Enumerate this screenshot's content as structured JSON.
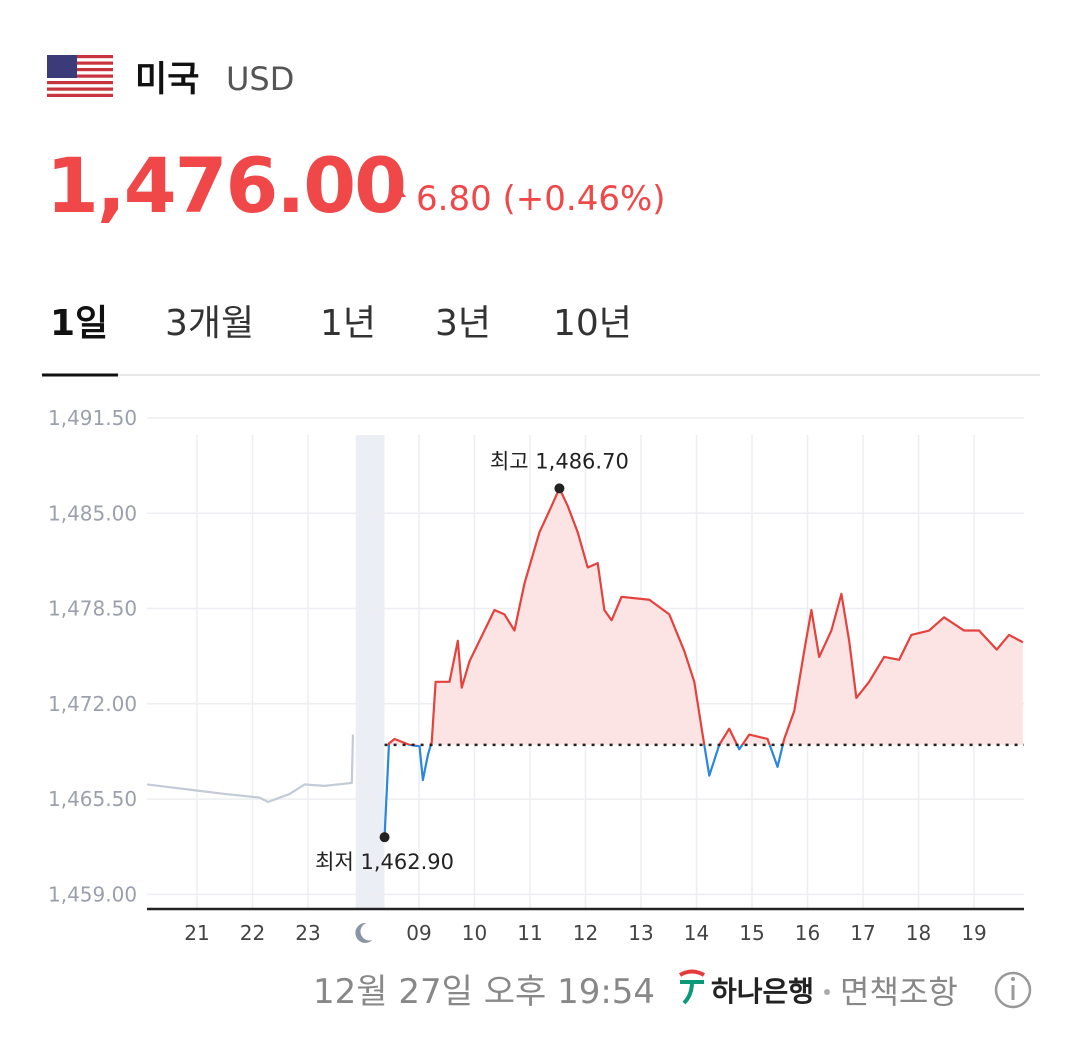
{
  "header": {
    "country": "미국",
    "currency": "USD",
    "price": "1,476.00",
    "change": "6.80 (+0.46%)"
  },
  "tabs": [
    "1일",
    "3개월",
    "1년",
    "3년",
    "10년"
  ],
  "chart_data": {
    "type": "line",
    "categories": [
      "21",
      "22",
      "23",
      null,
      "09",
      "10",
      "11",
      "12",
      "13",
      "14",
      "15",
      "16",
      "17",
      "18",
      "19"
    ],
    "xlim": [
      -0.9,
      14.9
    ],
    "ylim": [
      1458,
      1491.5
    ],
    "yticks": [
      {
        "value": 1491.5,
        "label": "1,491.50"
      },
      {
        "value": 1485,
        "label": "1,485.00"
      },
      {
        "value": 1478.5,
        "label": "1,478.50"
      },
      {
        "value": 1472,
        "label": "1,472.00"
      },
      {
        "value": 1465.5,
        "label": "1,465.50"
      },
      {
        "value": 1459,
        "label": "1,459.00"
      }
    ],
    "grid": true,
    "shaded_x": [
      2.86,
      3.38
    ],
    "baseline": 1469.2,
    "series": [
      {
        "color": "#c3cad8",
        "x": [
          -0.9,
          0.05,
          0.5,
          1.13,
          1.28,
          1.67,
          1.94,
          2.3,
          2.79,
          2.81
        ],
        "values": [
          1466.5,
          1466.06,
          1465.85,
          1465.6,
          1465.3,
          1465.85,
          1466.5,
          1466.4,
          1466.6,
          1469.9
        ]
      },
      {
        "color": "#e5413d",
        "below_color": "#2a86de",
        "fill": "#fbe4e3",
        "x": [
          3.38,
          3.46,
          3.56,
          3.83,
          4.01,
          4.07,
          4.16,
          4.23,
          4.3,
          4.55,
          4.7,
          4.77,
          4.91,
          5.18,
          5.36,
          5.54,
          5.72,
          5.9,
          6.17,
          6.39,
          6.53,
          6.68,
          6.86,
          7.04,
          7.22,
          7.34,
          7.47,
          7.65,
          8.15,
          8.51,
          8.78,
          8.96,
          9.11,
          9.23,
          9.41,
          9.59,
          9.77,
          9.95,
          10.28,
          10.46,
          10.58,
          10.76,
          10.94,
          11.07,
          11.21,
          11.43,
          11.61,
          11.75,
          11.88,
          12.11,
          12.38,
          12.65,
          12.87,
          13.19,
          13.46,
          13.82,
          14.09,
          14.41,
          14.63,
          14.88
        ],
        "values": [
          1462.9,
          1469.3,
          1469.6,
          1469.2,
          1469.1,
          1466.8,
          1468.5,
          1469.4,
          1473.5,
          1473.5,
          1476.3,
          1473.1,
          1474.9,
          1477.0,
          1478.4,
          1478.1,
          1477.0,
          1480.2,
          1483.7,
          1485.5,
          1486.7,
          1485.5,
          1483.7,
          1481.3,
          1481.6,
          1478.4,
          1477.7,
          1479.3,
          1479.1,
          1478.1,
          1475.6,
          1473.5,
          1469.9,
          1467.1,
          1469.2,
          1470.3,
          1468.9,
          1469.9,
          1469.6,
          1467.7,
          1469.6,
          1471.5,
          1475.6,
          1478.4,
          1475.2,
          1477.0,
          1479.5,
          1476.3,
          1472.4,
          1473.5,
          1475.2,
          1475.0,
          1476.7,
          1477.0,
          1477.9,
          1477.0,
          1477.0,
          1475.7,
          1476.7,
          1476.2
        ]
      }
    ],
    "annotations": [
      {
        "label": "최고 1,486.70",
        "x": 6.53,
        "value": 1486.7,
        "position": "above"
      },
      {
        "label": "최저 1,462.90",
        "x": 3.38,
        "value": 1462.9,
        "position": "below"
      }
    ]
  },
  "footer": {
    "timestamp": "12월 27일 오후 19:54",
    "bank": "하나은행",
    "disclaimer": "면책조항"
  }
}
